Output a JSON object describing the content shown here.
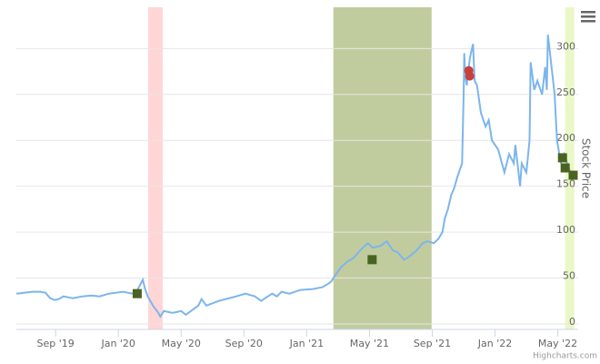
{
  "chart_data": {
    "type": "line",
    "y_title": "Stock Price",
    "credit": "Highcharts.com",
    "xlim": [
      6.5,
      42.3
    ],
    "xticks": [
      {
        "value": 9,
        "label": "Sep '19"
      },
      {
        "value": 13,
        "label": "Jan '20"
      },
      {
        "value": 17,
        "label": "May '20"
      },
      {
        "value": 21,
        "label": "Sep '20"
      },
      {
        "value": 25,
        "label": "Jan '21"
      },
      {
        "value": 29,
        "label": "May '21"
      },
      {
        "value": 33,
        "label": "Sep '21"
      },
      {
        "value": 37,
        "label": "Jan '22"
      },
      {
        "value": 41,
        "label": "May '22"
      }
    ],
    "ylim": [
      -6,
      345
    ],
    "yticks": [
      0,
      50,
      100,
      150,
      200,
      250,
      300
    ],
    "grid": true,
    "plot_bands": [
      {
        "from": 14.9,
        "to": 15.83,
        "color": "#ffd6d6"
      },
      {
        "from": 26.7,
        "to": 32.96,
        "color": "#c1cc9e"
      },
      {
        "from": 41.47,
        "to": 42.05,
        "color": "#eaf7c6"
      }
    ],
    "series": [
      {
        "color": "#7cb5ec",
        "x": [
          6.5,
          7,
          7.5,
          8,
          8.36,
          8.65,
          8.94,
          9.2,
          9.5,
          10.1,
          10.7,
          11.3,
          11.8,
          12.4,
          13.3,
          13.9,
          14.15,
          14.56,
          14.7,
          14.87,
          15.2,
          15.55,
          15.67,
          15.9,
          16.45,
          17.0,
          17.3,
          17.7,
          18.1,
          18.3,
          18.6,
          19.4,
          20.5,
          21.1,
          21.7,
          22.1,
          22.35,
          22.8,
          23.1,
          23.4,
          23.9,
          24.6,
          25.4,
          26.0,
          26.4,
          26.55,
          26.9,
          27.2,
          27.6,
          28.0,
          28.3,
          28.7,
          28.9,
          29.2,
          29.7,
          30.1,
          30.5,
          30.8,
          31.2,
          31.5,
          32.0,
          32.4,
          32.7,
          33.1,
          33.4,
          33.65,
          33.8,
          34.0,
          34.2,
          34.4,
          34.6,
          34.8,
          34.9,
          35.0,
          35.04,
          35.1,
          35.2,
          35.4,
          35.6,
          35.7,
          35.85,
          36.1,
          36.4,
          36.6,
          36.8,
          37.2,
          37.6,
          37.9,
          38.2,
          38.3,
          38.6,
          38.7,
          39.0,
          39.2,
          39.27,
          39.5,
          39.7,
          40.0,
          40.2,
          40.3,
          40.37,
          40.6,
          40.8,
          40.95,
          41.2,
          41.4,
          41.8,
          41.98
        ],
        "values": [
          33,
          34,
          35,
          35,
          34,
          28,
          26,
          27,
          30,
          28,
          30,
          31,
          30,
          33,
          35,
          33,
          35,
          48,
          38,
          30,
          20,
          12,
          8,
          14,
          12,
          14,
          10,
          15,
          20,
          27,
          20,
          25,
          30,
          33,
          30,
          25,
          28,
          33,
          30,
          35,
          33,
          37,
          38,
          40,
          44,
          46,
          55,
          62,
          68,
          72,
          78,
          85,
          88,
          83,
          85,
          90,
          80,
          78,
          70,
          73,
          80,
          88,
          90,
          88,
          93,
          100,
          115,
          125,
          140,
          148,
          160,
          170,
          175,
          250,
          295,
          270,
          260,
          290,
          305,
          265,
          260,
          230,
          215,
          222,
          200,
          190,
          165,
          185,
          175,
          195,
          150,
          175,
          165,
          200,
          285,
          255,
          265,
          250,
          280,
          255,
          315,
          280,
          250,
          200,
          175,
          185,
          165,
          160
        ]
      }
    ],
    "buy_markers": {
      "color": "#4b6320",
      "x": [
        14.2,
        29.17,
        41.3,
        41.47,
        41.98
      ],
      "values": [
        33,
        70,
        181,
        170,
        162
      ]
    },
    "sell_markers": {
      "color": "#c9403a",
      "x": [
        35.33,
        35.39
      ],
      "values": [
        276,
        270
      ]
    }
  }
}
